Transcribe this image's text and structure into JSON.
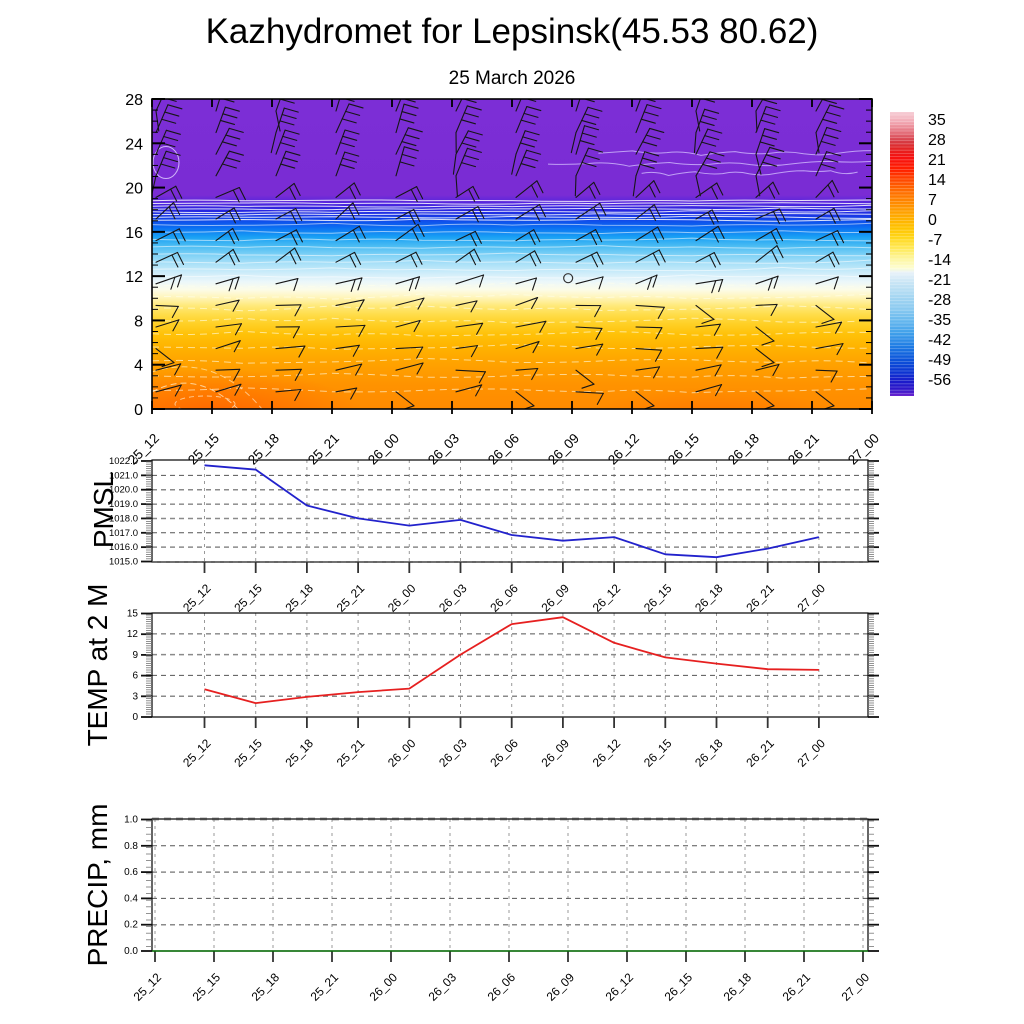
{
  "title": "Kazhydromet for Lepsinsk(45.53 80.62)",
  "subtitle": "25 March 2026",
  "time_labels": [
    "25_12",
    "25_15",
    "25_18",
    "25_21",
    "26_00",
    "26_03",
    "26_06",
    "26_09",
    "26_12",
    "26_15",
    "26_18",
    "26_21",
    "27_00"
  ],
  "chart_data": [
    {
      "type": "heatmap",
      "name": "vertical temperature cross-section with wind barbs",
      "x": [
        "25_12",
        "25_15",
        "25_18",
        "25_21",
        "26_00",
        "26_03",
        "26_06",
        "26_09",
        "26_12",
        "26_15",
        "26_18",
        "26_21",
        "27_00"
      ],
      "ylim": [
        0,
        28
      ],
      "ytick_labels": [
        "28",
        "24",
        "20",
        "16",
        "12",
        "8",
        "4",
        "0"
      ],
      "legend_position": "right colorbar",
      "grid": false,
      "bands_top_to_bottom": [
        {
          "height_km": "19-28",
          "color": "#7c2ed6",
          "approx_temp": "-56 and colder"
        },
        {
          "height_km": "17-19",
          "color": "#2b23df",
          "approx_temp": "-49 to -56"
        },
        {
          "height_km": "12-17",
          "color": "#4cbdf3",
          "approx_temp": "-21 to -42"
        },
        {
          "height_km": "10.5-12",
          "color": "#fcfce8",
          "approx_temp": "-14"
        },
        {
          "height_km": "7-10.5",
          "color": "#ffdd4a",
          "approx_temp": "-7 to 0"
        },
        {
          "height_km": "0-7",
          "color": "#ff8a00",
          "approx_temp": "0 to 10"
        }
      ],
      "gradient_stops": [
        [
          0.0,
          "#7c2ed6"
        ],
        [
          0.31,
          "#7a2cd4"
        ],
        [
          0.335,
          "#5526dd"
        ],
        [
          0.355,
          "#2b23df"
        ],
        [
          0.385,
          "#1240e8"
        ],
        [
          0.415,
          "#0a6ff2"
        ],
        [
          0.445,
          "#19a0f4"
        ],
        [
          0.475,
          "#4cbdf3"
        ],
        [
          0.505,
          "#82d2f6"
        ],
        [
          0.535,
          "#aee2f8"
        ],
        [
          0.565,
          "#d3eefa"
        ],
        [
          0.59,
          "#ecf7fa"
        ],
        [
          0.615,
          "#fcfce8"
        ],
        [
          0.64,
          "#fff5bb"
        ],
        [
          0.665,
          "#ffea7e"
        ],
        [
          0.695,
          "#ffdd4a"
        ],
        [
          0.725,
          "#ffd026"
        ],
        [
          0.76,
          "#ffc108"
        ],
        [
          0.8,
          "#ffb300"
        ],
        [
          0.85,
          "#ffa300"
        ],
        [
          0.92,
          "#ff9300"
        ],
        [
          1.0,
          "#ff8a00"
        ]
      ],
      "hot_patch_color": "#ff5a00",
      "wind_barbs": {
        "columns": 13,
        "rows": 14,
        "note": "black wind barbs over all heights; calm circle near 26_06 at ~12 km"
      },
      "calm_marker": {
        "x_frac": 0.578,
        "y_frac": 0.578
      }
    },
    {
      "type": "line",
      "name": "PMSL",
      "x": [
        "25_12",
        "25_15",
        "25_18",
        "25_21",
        "26_00",
        "26_03",
        "26_06",
        "26_09",
        "26_12",
        "26_15",
        "26_18",
        "26_21",
        "27_00"
      ],
      "values": [
        1021.7,
        1021.4,
        1018.9,
        1018.0,
        1017.5,
        1017.9,
        1016.85,
        1016.45,
        1016.7,
        1015.5,
        1015.3,
        1015.9,
        1016.7
      ],
      "ylim": [
        1015.0,
        1022.0
      ],
      "ytick_labels": [
        "1022.0",
        "1021.0",
        "1020.0",
        "1019.0",
        "1018.0",
        "1017.0",
        "1016.0",
        "1015.0"
      ],
      "color": "#2222cc",
      "grid": "dashed"
    },
    {
      "type": "line",
      "name": "TEMP at 2 M",
      "x": [
        "25_12",
        "25_15",
        "25_18",
        "25_21",
        "26_00",
        "26_03",
        "26_06",
        "26_09",
        "26_12",
        "26_15",
        "26_18",
        "26_21",
        "27_00"
      ],
      "values": [
        4.0,
        2.0,
        2.9,
        3.6,
        4.1,
        9.0,
        13.4,
        14.4,
        10.7,
        8.6,
        7.7,
        6.9,
        6.8
      ],
      "ylim": [
        0,
        15
      ],
      "ytick_labels": [
        "15",
        "12",
        "9",
        "6",
        "3",
        "0"
      ],
      "color": "#e62020",
      "grid": "dashed"
    },
    {
      "type": "line",
      "name": "PRECIP, mm",
      "x": [
        "25_12",
        "25_15",
        "25_18",
        "25_21",
        "26_00",
        "26_03",
        "26_06",
        "26_09",
        "26_12",
        "26_15",
        "26_18",
        "26_21",
        "27_00"
      ],
      "values": [
        0,
        0,
        0,
        0,
        0,
        0,
        0,
        0,
        0,
        0,
        0,
        0,
        0
      ],
      "ylim": [
        0.0,
        1.0
      ],
      "ytick_labels": [
        "1.0",
        "0.8",
        "0.6",
        "0.4",
        "0.2",
        "0.0"
      ],
      "color": "#067006",
      "grid": "dashed"
    }
  ],
  "colorbar": {
    "tick_labels": [
      "35",
      "28",
      "21",
      "14",
      "7",
      "0",
      "-7",
      "-14",
      "-21",
      "-28",
      "-35",
      "-42",
      "-49",
      "-56"
    ],
    "stops": [
      [
        0.0,
        "#f6ced6"
      ],
      [
        0.035,
        "#f2a9b4"
      ],
      [
        0.07,
        "#e4717d"
      ],
      [
        0.105,
        "#d63a42"
      ],
      [
        0.13,
        "#e32222"
      ],
      [
        0.16,
        "#f61111"
      ],
      [
        0.2,
        "#ff1e00"
      ],
      [
        0.235,
        "#ff4400"
      ],
      [
        0.27,
        "#ff6600"
      ],
      [
        0.305,
        "#ff8000"
      ],
      [
        0.34,
        "#ff9900"
      ],
      [
        0.375,
        "#ffb000"
      ],
      [
        0.41,
        "#ffc400"
      ],
      [
        0.445,
        "#ffd81e"
      ],
      [
        0.48,
        "#ffe958"
      ],
      [
        0.515,
        "#fdf59b"
      ],
      [
        0.55,
        "#fdfdd2"
      ],
      [
        0.565,
        "#e8f2f9"
      ],
      [
        0.6,
        "#c9e5f5"
      ],
      [
        0.645,
        "#a9d8f2"
      ],
      [
        0.69,
        "#8ccbf0"
      ],
      [
        0.735,
        "#66b8ee"
      ],
      [
        0.78,
        "#3f9fea"
      ],
      [
        0.825,
        "#1f7ce4"
      ],
      [
        0.87,
        "#0c55da"
      ],
      [
        0.915,
        "#0c35d2"
      ],
      [
        0.95,
        "#1b1bcb"
      ],
      [
        0.975,
        "#2e17c9"
      ],
      [
        1.0,
        "#6a24ce"
      ]
    ]
  }
}
